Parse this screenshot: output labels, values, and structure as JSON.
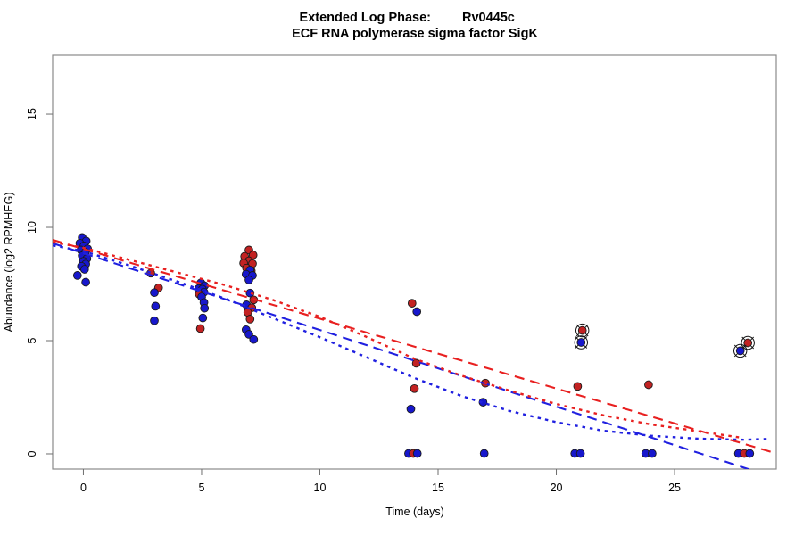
{
  "chart_data": {
    "type": "scatter",
    "title_full": "Extended Log Phase:      Rv0445c",
    "title_left": "Extended Log Phase:",
    "title_right": "Rv0445c",
    "subtitle": "ECF RNA polymerase sigma factor SigK",
    "xlabel": "Time (days)",
    "ylabel": "Abundance (log2 RPMHEG)",
    "xlim": [
      -1.3,
      29.3
    ],
    "ylim": [
      -0.67,
      17.6
    ],
    "xticks": [
      0,
      5,
      10,
      15,
      20,
      25
    ],
    "yticks": [
      0,
      5,
      10,
      15
    ],
    "grid": false,
    "legend": "none",
    "colors": {
      "red_point": "#C22222",
      "blue_point": "#1717CC",
      "red_line": "#E82020",
      "blue_line": "#2020E0",
      "box": "#8A8A8A",
      "tick": "#6E6E6E",
      "text": "#000000"
    },
    "points": [
      {
        "t": -0.05,
        "v": 9.55,
        "c": "blue"
      },
      {
        "t": 0.12,
        "v": 9.4,
        "c": "blue"
      },
      {
        "t": -0.15,
        "v": 9.3,
        "c": "blue"
      },
      {
        "t": 0.02,
        "v": 9.18,
        "c": "blue"
      },
      {
        "t": 0.18,
        "v": 9.05,
        "c": "blue"
      },
      {
        "t": -0.1,
        "v": 9.0,
        "c": "blue"
      },
      {
        "t": 0.08,
        "v": 8.9,
        "c": "blue"
      },
      {
        "t": -0.05,
        "v": 8.75,
        "c": "blue"
      },
      {
        "t": 0.15,
        "v": 8.62,
        "c": "blue"
      },
      {
        "t": 0.0,
        "v": 8.5,
        "c": "blue"
      },
      {
        "t": 0.1,
        "v": 8.38,
        "c": "blue"
      },
      {
        "t": -0.08,
        "v": 8.28,
        "c": "blue"
      },
      {
        "t": 0.05,
        "v": 8.15,
        "c": "blue"
      },
      {
        "t": -0.25,
        "v": 7.88,
        "c": "blue"
      },
      {
        "t": 0.1,
        "v": 7.58,
        "c": "blue"
      },
      {
        "t": 2.85,
        "v": 7.98,
        "c": "red"
      },
      {
        "t": 3.18,
        "v": 7.33,
        "c": "red"
      },
      {
        "t": 3.0,
        "v": 7.12,
        "c": "blue"
      },
      {
        "t": 3.05,
        "v": 6.52,
        "c": "blue"
      },
      {
        "t": 3.0,
        "v": 5.88,
        "c": "blue"
      },
      {
        "t": 4.97,
        "v": 7.55,
        "c": "blue"
      },
      {
        "t": 5.12,
        "v": 7.42,
        "c": "blue"
      },
      {
        "t": 4.88,
        "v": 7.3,
        "c": "blue"
      },
      {
        "t": 5.03,
        "v": 7.27,
        "c": "blue"
      },
      {
        "t": 5.1,
        "v": 7.14,
        "c": "blue"
      },
      {
        "t": 4.9,
        "v": 7.05,
        "c": "red"
      },
      {
        "t": 5.0,
        "v": 6.93,
        "c": "blue"
      },
      {
        "t": 5.1,
        "v": 6.68,
        "c": "blue"
      },
      {
        "t": 5.12,
        "v": 6.43,
        "c": "blue"
      },
      {
        "t": 5.05,
        "v": 6.0,
        "c": "blue"
      },
      {
        "t": 4.95,
        "v": 5.53,
        "c": "red"
      },
      {
        "t": 7.0,
        "v": 9.0,
        "c": "red"
      },
      {
        "t": 6.82,
        "v": 8.72,
        "c": "red"
      },
      {
        "t": 7.18,
        "v": 8.78,
        "c": "red"
      },
      {
        "t": 7.0,
        "v": 8.52,
        "c": "red"
      },
      {
        "t": 6.78,
        "v": 8.42,
        "c": "red"
      },
      {
        "t": 7.15,
        "v": 8.4,
        "c": "red"
      },
      {
        "t": 6.9,
        "v": 8.2,
        "c": "red"
      },
      {
        "t": 7.1,
        "v": 8.08,
        "c": "red"
      },
      {
        "t": 7.05,
        "v": 8.12,
        "c": "blue"
      },
      {
        "t": 6.88,
        "v": 7.93,
        "c": "blue"
      },
      {
        "t": 7.15,
        "v": 7.88,
        "c": "blue"
      },
      {
        "t": 7.0,
        "v": 7.68,
        "c": "blue"
      },
      {
        "t": 7.05,
        "v": 7.1,
        "c": "blue"
      },
      {
        "t": 7.2,
        "v": 6.8,
        "c": "red"
      },
      {
        "t": 6.9,
        "v": 6.58,
        "c": "blue"
      },
      {
        "t": 7.12,
        "v": 6.45,
        "c": "red"
      },
      {
        "t": 6.95,
        "v": 6.25,
        "c": "red"
      },
      {
        "t": 7.05,
        "v": 5.95,
        "c": "red"
      },
      {
        "t": 6.88,
        "v": 5.48,
        "c": "blue"
      },
      {
        "t": 7.0,
        "v": 5.28,
        "c": "blue"
      },
      {
        "t": 7.2,
        "v": 5.05,
        "c": "blue"
      },
      {
        "t": 13.9,
        "v": 6.65,
        "c": "red"
      },
      {
        "t": 14.1,
        "v": 6.28,
        "c": "blue"
      },
      {
        "t": 14.08,
        "v": 4.0,
        "c": "red"
      },
      {
        "t": 14.0,
        "v": 2.88,
        "c": "red"
      },
      {
        "t": 13.85,
        "v": 1.98,
        "c": "blue"
      },
      {
        "t": 13.75,
        "v": 0.02,
        "c": "blue"
      },
      {
        "t": 13.95,
        "v": 0.02,
        "c": "red"
      },
      {
        "t": 14.12,
        "v": 0.02,
        "c": "blue"
      },
      {
        "t": 17.0,
        "v": 3.12,
        "c": "red"
      },
      {
        "t": 16.9,
        "v": 2.28,
        "c": "blue"
      },
      {
        "t": 16.95,
        "v": 0.02,
        "c": "blue"
      },
      {
        "t": 21.1,
        "v": 5.45,
        "c": "red",
        "o": true
      },
      {
        "t": 21.05,
        "v": 4.92,
        "c": "blue",
        "o": true
      },
      {
        "t": 20.9,
        "v": 2.98,
        "c": "red"
      },
      {
        "t": 20.78,
        "v": 0.02,
        "c": "blue"
      },
      {
        "t": 21.02,
        "v": 0.02,
        "c": "blue"
      },
      {
        "t": 23.9,
        "v": 3.05,
        "c": "red"
      },
      {
        "t": 23.78,
        "v": 0.02,
        "c": "blue"
      },
      {
        "t": 24.05,
        "v": 0.02,
        "c": "blue"
      },
      {
        "t": 28.1,
        "v": 4.9,
        "c": "red",
        "o": true
      },
      {
        "t": 27.78,
        "v": 4.55,
        "c": "blue",
        "o": true
      },
      {
        "t": 27.7,
        "v": 0.02,
        "c": "blue"
      },
      {
        "t": 27.95,
        "v": 0.02,
        "c": "red"
      },
      {
        "t": 28.18,
        "v": 0.02,
        "c": "blue"
      }
    ],
    "trend_lines": [
      {
        "id": "red-dashed",
        "series": "red",
        "dash": "long",
        "pts": [
          [
            -1.3,
            9.45
          ],
          [
            29.3,
            0.02
          ]
        ]
      },
      {
        "id": "blue-dashed",
        "series": "blue",
        "dash": "long",
        "pts": [
          [
            -1.3,
            9.3
          ],
          [
            28.35,
            -0.75
          ]
        ]
      },
      {
        "id": "red-dotted",
        "series": "red",
        "dash": "dot",
        "pts": [
          [
            -1.3,
            9.35
          ],
          [
            0,
            9.1
          ],
          [
            2,
            8.55
          ],
          [
            4,
            8.0
          ],
          [
            6,
            7.45
          ],
          [
            8,
            6.8
          ],
          [
            10,
            6.05
          ],
          [
            12,
            5.15
          ],
          [
            14,
            4.2
          ],
          [
            16,
            3.45
          ],
          [
            18,
            2.8
          ],
          [
            20,
            2.2
          ],
          [
            22,
            1.7
          ],
          [
            24,
            1.3
          ],
          [
            26,
            1.0
          ],
          [
            27.9,
            0.7
          ]
        ]
      },
      {
        "id": "blue-dotted",
        "series": "blue",
        "dash": "dot",
        "pts": [
          [
            -1.3,
            9.2
          ],
          [
            0,
            8.95
          ],
          [
            2,
            8.3
          ],
          [
            4,
            7.6
          ],
          [
            6,
            6.85
          ],
          [
            8,
            6.0
          ],
          [
            10,
            5.15
          ],
          [
            12,
            4.25
          ],
          [
            14,
            3.35
          ],
          [
            16,
            2.55
          ],
          [
            18,
            1.9
          ],
          [
            20,
            1.4
          ],
          [
            22,
            1.02
          ],
          [
            24,
            0.8
          ],
          [
            26,
            0.67
          ],
          [
            28,
            0.62
          ],
          [
            29,
            0.66
          ]
        ]
      }
    ]
  }
}
